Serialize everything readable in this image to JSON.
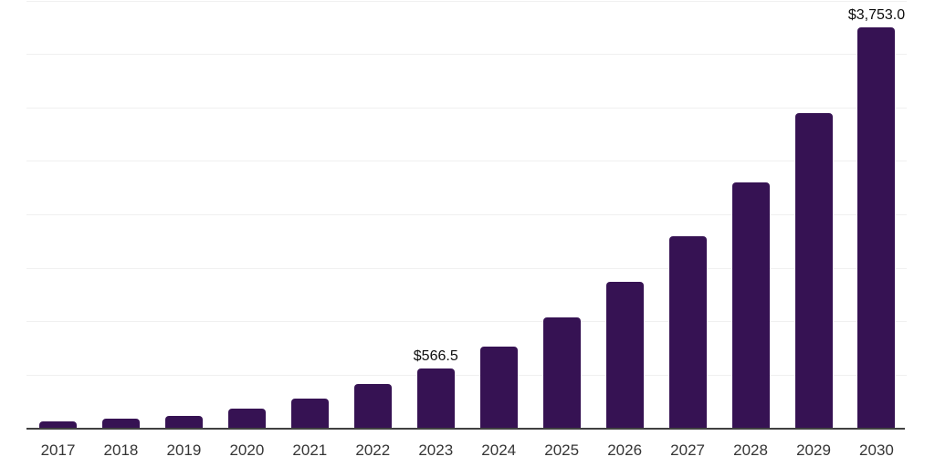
{
  "chart_data": {
    "type": "bar",
    "title": "",
    "xlabel": "",
    "ylabel": "",
    "categories": [
      "2017",
      "2018",
      "2019",
      "2020",
      "2021",
      "2022",
      "2023",
      "2024",
      "2025",
      "2026",
      "2027",
      "2028",
      "2029",
      "2030"
    ],
    "values": [
      66,
      91,
      117,
      185,
      283,
      415,
      566.5,
      768,
      1043,
      1373,
      1800,
      2303,
      2954,
      3753
    ],
    "value_labels": [
      {
        "category": "2023",
        "text": "$566.5"
      },
      {
        "category": "2030",
        "text": "$3,753.0"
      }
    ],
    "ylim": [
      0,
      4000
    ],
    "gridline_step": 500,
    "grid": "horizontal",
    "legend": "none",
    "colors": {
      "bar": "#361253",
      "axis": "#414141",
      "gridline": "#f0f0f0",
      "tick_label": "#363636",
      "value_label": "#0d0d0d",
      "background": "#ffffff"
    }
  }
}
